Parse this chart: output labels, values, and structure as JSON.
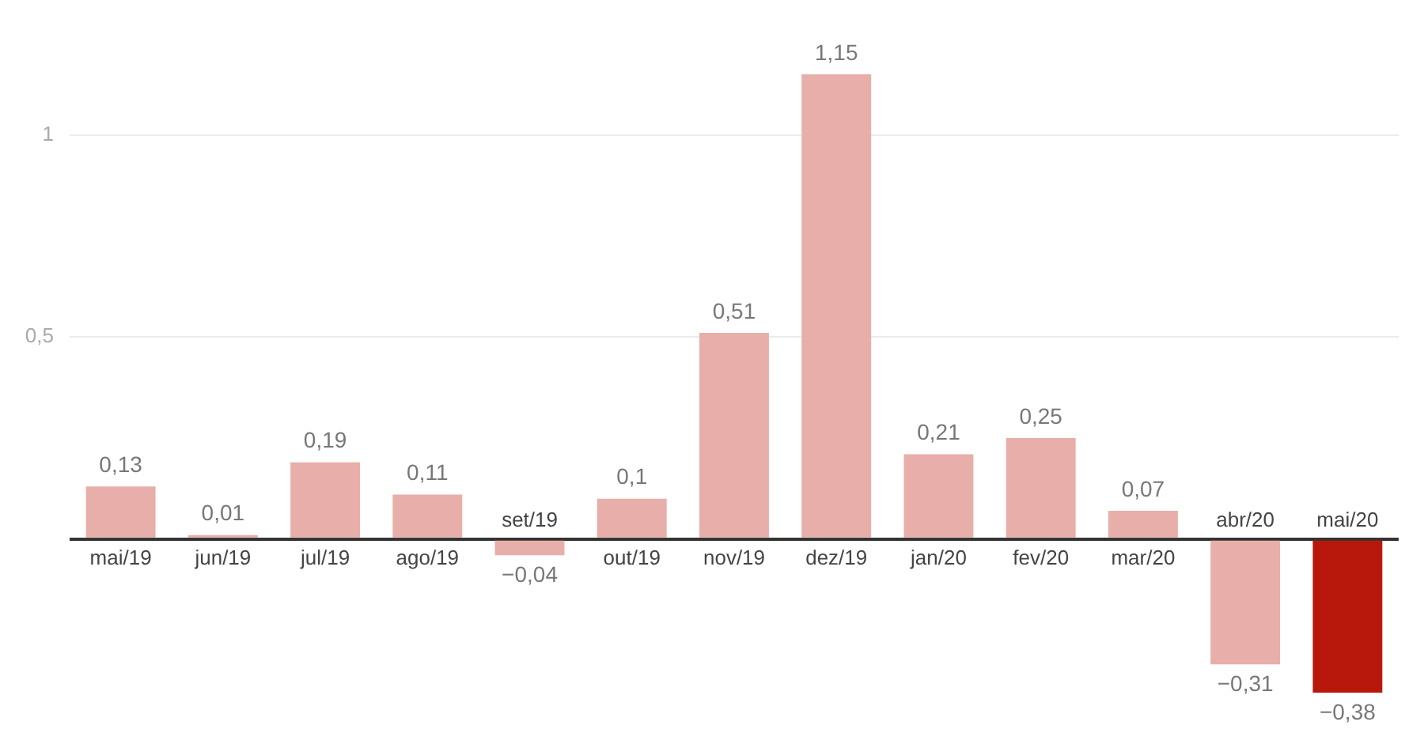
{
  "chart_data": {
    "type": "bar",
    "categories": [
      "mai/19",
      "jun/19",
      "jul/19",
      "ago/19",
      "set/19",
      "out/19",
      "nov/19",
      "dez/19",
      "jan/20",
      "fev/20",
      "mar/20",
      "abr/20",
      "mai/20"
    ],
    "values": [
      0.13,
      0.01,
      0.19,
      0.11,
      -0.04,
      0.1,
      0.51,
      1.15,
      0.21,
      0.25,
      0.07,
      -0.31,
      -0.38
    ],
    "value_labels": [
      "0,13",
      "0,01",
      "0,19",
      "0,11",
      "−0,04",
      "0,1",
      "0,51",
      "1,15",
      "0,21",
      "0,25",
      "0,07",
      "−0,31",
      "−0,38"
    ],
    "colors": [
      "#e8aea9",
      "#e8aea9",
      "#e8aea9",
      "#e8aea9",
      "#e8aea9",
      "#e8aea9",
      "#e8aea9",
      "#e8aea9",
      "#e8aea9",
      "#e8aea9",
      "#e8aea9",
      "#e8aea9",
      "#b8180c"
    ],
    "ylim": [
      -0.38,
      1.15
    ],
    "yticks": [
      {
        "value": 0,
        "label": null
      },
      {
        "value": 0.5,
        "label": "0,5"
      },
      1
    ],
    "grid": "y",
    "legend": false
  }
}
